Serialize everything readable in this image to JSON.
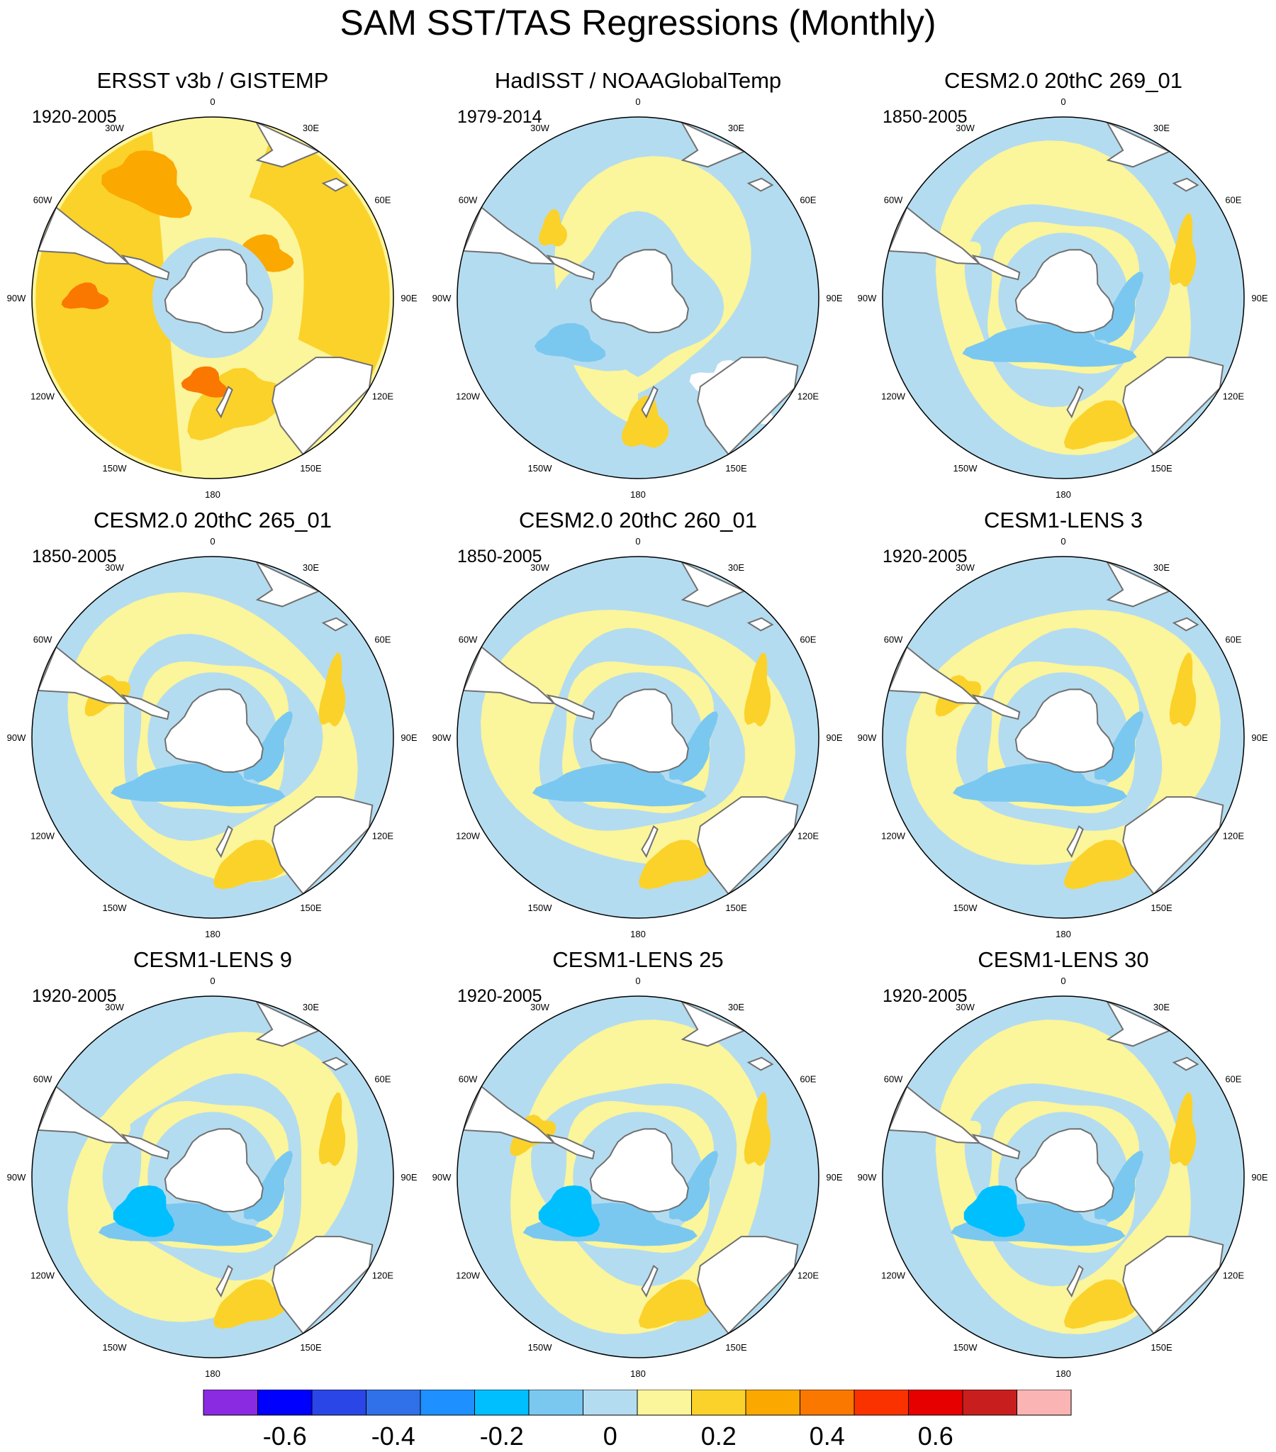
{
  "figure": {
    "title": "SAM SST/TAS Regressions (Monthly)"
  },
  "map_style": {
    "longitude_labels": [
      "0",
      "30E",
      "60E",
      "90E",
      "120E",
      "150E",
      "180",
      "150W",
      "120W",
      "90W",
      "60W",
      "30W"
    ],
    "land_color": "#ffffff",
    "coast_color": "#707070",
    "sea_ice_outline_color": "#a0a0a0"
  },
  "colorbar": {
    "colors": [
      "#8a2be2",
      "#0000ff",
      "#2b46e6",
      "#3070e8",
      "#1e90ff",
      "#00bfff",
      "#7ac8f0",
      "#b4dcf0",
      "#fbf59b",
      "#fbd22a",
      "#fba800",
      "#fa7800",
      "#fa3200",
      "#e60000",
      "#c81e1e",
      "#fab4b4"
    ],
    "tick_labels": [
      "-0.6",
      "-0.4",
      "-0.2",
      "0",
      "0.2",
      "0.4",
      "0.6"
    ]
  },
  "chart_data": [
    {
      "type": "polar_map",
      "title": "ERSST v3b / GISTEMP",
      "period": "1920-2005",
      "field": "ersst",
      "contour_levels": [
        -0.7,
        -0.6,
        -0.5,
        -0.4,
        -0.3,
        -0.2,
        -0.1,
        0,
        0.1,
        0.2,
        0.3,
        0.4,
        0.5,
        0.6,
        0.7
      ]
    },
    {
      "type": "polar_map",
      "title": "HadISST / NOAAGlobalTemp",
      "period": "1979-2014",
      "field": "hadisst"
    },
    {
      "type": "polar_map",
      "title": "CESM2.0 20thC 269_01",
      "period": "1850-2005",
      "field": "model"
    },
    {
      "type": "polar_map",
      "title": "CESM2.0 20thC 265_01",
      "period": "1850-2005",
      "field": "model"
    },
    {
      "type": "polar_map",
      "title": "CESM2.0 20thC 260_01",
      "period": "1850-2005",
      "field": "model"
    },
    {
      "type": "polar_map",
      "title": "CESM1-LENS 3",
      "period": "1920-2005",
      "field": "model"
    },
    {
      "type": "polar_map",
      "title": "CESM1-LENS 9",
      "period": "1920-2005",
      "field": "model"
    },
    {
      "type": "polar_map",
      "title": "CESM1-LENS 25",
      "period": "1920-2005",
      "field": "model"
    },
    {
      "type": "polar_map",
      "title": "CESM1-LENS 30",
      "period": "1920-2005",
      "field": "model"
    }
  ]
}
